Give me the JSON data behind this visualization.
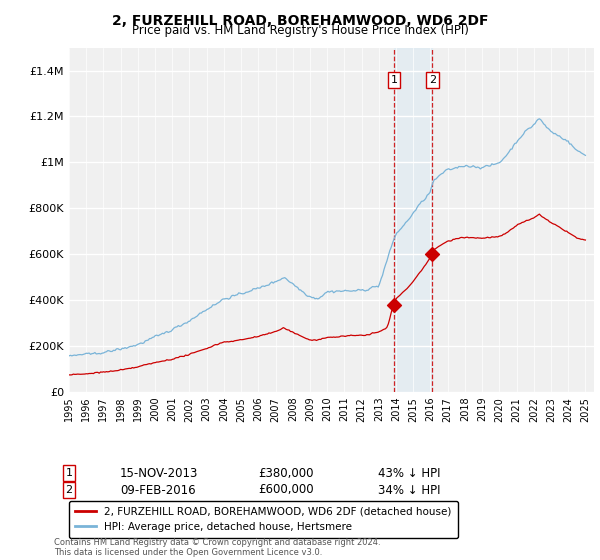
{
  "title": "2, FURZEHILL ROAD, BOREHAMWOOD, WD6 2DF",
  "subtitle": "Price paid vs. HM Land Registry's House Price Index (HPI)",
  "ylim": [
    0,
    1500000
  ],
  "yticks": [
    0,
    200000,
    400000,
    600000,
    800000,
    1000000,
    1200000,
    1400000
  ],
  "ytick_labels": [
    "£0",
    "£200K",
    "£400K",
    "£600K",
    "£800K",
    "£1M",
    "£1.2M",
    "£1.4M"
  ],
  "xlim_start": 1995.0,
  "xlim_end": 2025.5,
  "sale1_date": 2013.877,
  "sale1_price": 380000,
  "sale1_label": "1",
  "sale1_text": "15-NOV-2013",
  "sale1_amount": "£380,000",
  "sale1_pct": "43% ↓ HPI",
  "sale2_date": 2016.1,
  "sale2_price": 600000,
  "sale2_label": "2",
  "sale2_text": "09-FEB-2016",
  "sale2_amount": "£600,000",
  "sale2_pct": "34% ↓ HPI",
  "hpi_color": "#7ab4d8",
  "price_color": "#cc0000",
  "marker_color": "#cc0000",
  "shade_color": "#d4e8f5",
  "background_color": "#f0f0f0",
  "legend_label_red": "2, FURZEHILL ROAD, BOREHAMWOOD, WD6 2DF (detached house)",
  "legend_label_blue": "HPI: Average price, detached house, Hertsmere",
  "footer": "Contains HM Land Registry data © Crown copyright and database right 2024.\nThis data is licensed under the Open Government Licence v3.0."
}
